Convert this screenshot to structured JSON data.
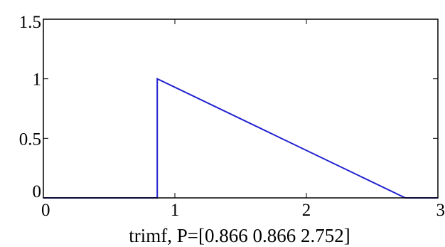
{
  "chart_data": {
    "type": "line",
    "title": "",
    "xlabel": "trimf, P=[0.866 0.866 2.752]",
    "ylabel": "",
    "xlim": [
      0,
      3
    ],
    "ylim": [
      0,
      1.5
    ],
    "grid": false,
    "x_ticks": [
      0,
      1,
      2,
      3
    ],
    "x_tick_labels": [
      "0",
      "1",
      "2",
      "3"
    ],
    "y_ticks": [
      0,
      0.5,
      1,
      1.5
    ],
    "y_tick_labels": [
      "0",
      "0.5",
      "1",
      "1.5"
    ],
    "series": [
      {
        "color": "#2020d0",
        "x": [
          0,
          0.866,
          0.866,
          2.752,
          3
        ],
        "y": [
          0,
          0,
          1,
          0,
          0
        ]
      }
    ]
  }
}
